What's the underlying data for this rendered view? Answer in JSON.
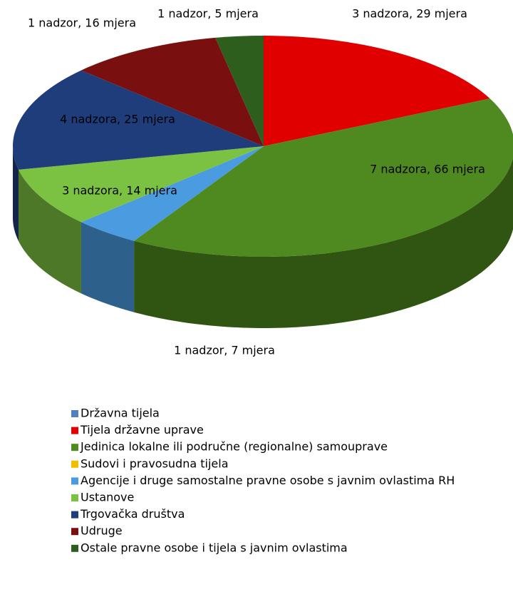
{
  "chart_data": {
    "type": "pie3d",
    "categories": [
      "Državna tijela",
      "Tijela državne uprave",
      "Jedinica lokalne ili područne (regionalne) samouprave",
      "Sudovi i pravosudna tijela",
      "Agencije i druge samostalne pravne osobe s javnim ovlastima RH",
      "Ustanove",
      "Trgovačka društva",
      "Udruge",
      "Ostale pravne osobe i tijela s javnim ovlastima"
    ],
    "values": [
      0,
      29,
      66,
      0,
      7,
      14,
      25,
      16,
      5
    ],
    "value_labels": [
      null,
      "3 nadzora, 29 mjera",
      "7 nadzora, 66 mjera",
      null,
      "1 nadzor, 7 mjera",
      "3 nadzora, 14 mjera",
      "4 nadzora, 25 mjera",
      "1 nadzor, 16 mjera",
      "1 nadzor, 5 mjera"
    ],
    "colors": [
      "#4f81bd",
      "#e00000",
      "#4e8a1f",
      "#f0c000",
      "#4a9be0",
      "#7cc242",
      "#1f3d7a",
      "#7a0f0f",
      "#2e5e1e"
    ],
    "legend": "bottom-left"
  }
}
